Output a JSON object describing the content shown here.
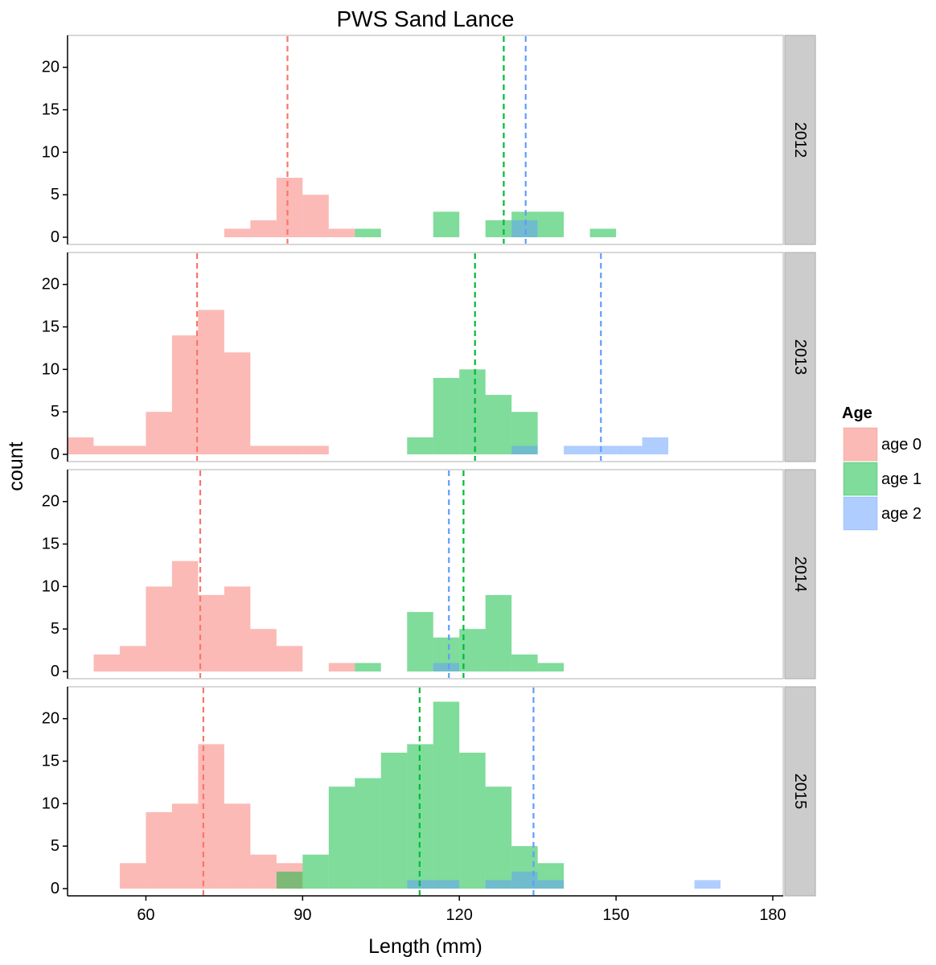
{
  "chart_data": {
    "type": "bar",
    "title": "PWS Sand Lance",
    "xlabel": "Length (mm)",
    "ylabel": "count",
    "xlim": [
      45,
      182
    ],
    "ylim": [
      0,
      23
    ],
    "x_ticks": [
      60,
      90,
      120,
      150,
      180
    ],
    "y_ticks": [
      0,
      5,
      10,
      15,
      20
    ],
    "bin_width": 5,
    "grid": false,
    "legend": {
      "title": "Age",
      "position": "right",
      "entries": [
        "age 0",
        "age 1",
        "age 2"
      ]
    },
    "colors": {
      "age 0": "#f8766d",
      "age 1": "#00ba38",
      "age 2": "#619cff"
    },
    "bar_opacity": 0.5,
    "panels": [
      {
        "facet": "2012",
        "series": [
          {
            "name": "age 0",
            "bins": [
              [
                75,
                1
              ],
              [
                80,
                2
              ],
              [
                85,
                7
              ],
              [
                90,
                5
              ],
              [
                95,
                1
              ]
            ],
            "mean": 87.1
          },
          {
            "name": "age 1",
            "bins": [
              [
                100,
                1
              ],
              [
                115,
                3
              ],
              [
                125,
                2
              ],
              [
                130,
                3
              ],
              [
                135,
                3
              ],
              [
                145,
                1
              ]
            ],
            "mean": 128.5
          },
          {
            "name": "age 2",
            "bins": [
              [
                130,
                2
              ]
            ],
            "mean": 132.7
          }
        ]
      },
      {
        "facet": "2013",
        "series": [
          {
            "name": "age 0",
            "bins": [
              [
                45,
                2
              ],
              [
                50,
                1
              ],
              [
                55,
                1
              ],
              [
                60,
                5
              ],
              [
                65,
                14
              ],
              [
                70,
                17
              ],
              [
                75,
                12
              ],
              [
                80,
                1
              ],
              [
                85,
                1
              ],
              [
                90,
                1
              ]
            ],
            "mean": 69.8
          },
          {
            "name": "age 1",
            "bins": [
              [
                110,
                2
              ],
              [
                115,
                9
              ],
              [
                120,
                10
              ],
              [
                125,
                7
              ],
              [
                130,
                5
              ]
            ],
            "mean": 123.0
          },
          {
            "name": "age 2",
            "bins": [
              [
                130,
                1
              ],
              [
                140,
                1
              ],
              [
                145,
                1
              ],
              [
                150,
                1
              ],
              [
                155,
                2
              ]
            ],
            "mean": 147.1
          }
        ]
      },
      {
        "facet": "2014",
        "series": [
          {
            "name": "age 0",
            "bins": [
              [
                50,
                2
              ],
              [
                55,
                3
              ],
              [
                60,
                10
              ],
              [
                65,
                13
              ],
              [
                70,
                9
              ],
              [
                75,
                10
              ],
              [
                80,
                5
              ],
              [
                85,
                3
              ],
              [
                95,
                1
              ]
            ],
            "mean": 70.4
          },
          {
            "name": "age 1",
            "bins": [
              [
                100,
                1
              ],
              [
                110,
                7
              ],
              [
                115,
                4
              ],
              [
                120,
                5
              ],
              [
                125,
                9
              ],
              [
                130,
                2
              ],
              [
                135,
                1
              ]
            ],
            "mean": 120.8
          },
          {
            "name": "age 2",
            "bins": [
              [
                115,
                1
              ]
            ],
            "mean": 118.0
          }
        ]
      },
      {
        "facet": "2015",
        "series": [
          {
            "name": "age 0",
            "bins": [
              [
                55,
                3
              ],
              [
                60,
                9
              ],
              [
                65,
                10
              ],
              [
                70,
                17
              ],
              [
                75,
                10
              ],
              [
                80,
                4
              ],
              [
                85,
                3
              ]
            ],
            "mean": 71.0
          },
          {
            "name": "age 1",
            "bins": [
              [
                85,
                2
              ],
              [
                90,
                4
              ],
              [
                95,
                12
              ],
              [
                100,
                13
              ],
              [
                105,
                16
              ],
              [
                110,
                17
              ],
              [
                115,
                22
              ],
              [
                120,
                16
              ],
              [
                125,
                12
              ],
              [
                130,
                5
              ],
              [
                135,
                3
              ]
            ],
            "mean": 112.4
          },
          {
            "name": "age 2",
            "bins": [
              [
                110,
                1
              ],
              [
                115,
                1
              ],
              [
                125,
                1
              ],
              [
                130,
                2
              ],
              [
                135,
                1
              ],
              [
                165,
                1
              ]
            ],
            "mean": 134.2
          }
        ]
      }
    ]
  }
}
